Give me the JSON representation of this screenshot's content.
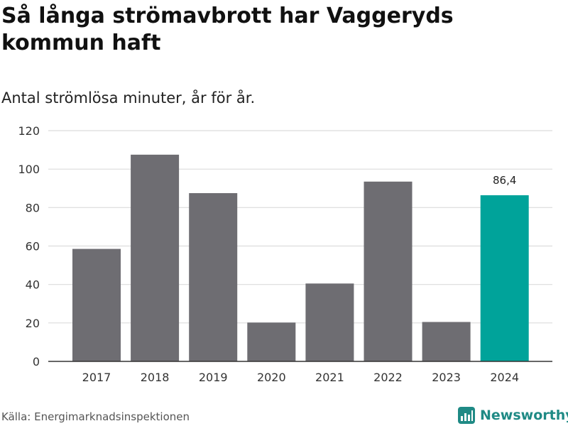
{
  "title": "Så långa strömavbrott har Vaggeryds kommun haft",
  "subtitle": "Antal strömlösa minuter, år för år.",
  "source": "Källa: Energimarknadsinspektionen",
  "brand": {
    "name": "Newsworthy",
    "icon": "newsworthy-logo-icon",
    "color": "#1f8a85"
  },
  "colors": {
    "default_bar": "#6e6d72",
    "highlight_bar": "#00a39a",
    "grid": "#dcdcdc",
    "axis": "#333333"
  },
  "chart_data": {
    "type": "bar",
    "title": "Så långa strömavbrott har Vaggeryds kommun haft",
    "subtitle": "Antal strömlösa minuter, år för år.",
    "xlabel": "",
    "ylabel": "",
    "categories": [
      "2017",
      "2018",
      "2019",
      "2020",
      "2021",
      "2022",
      "2023",
      "2024"
    ],
    "values": [
      58.5,
      107.5,
      87.5,
      20.2,
      40.5,
      93.5,
      20.5,
      86.4
    ],
    "highlight_index": 7,
    "data_labels": [
      {
        "index": 7,
        "text": "86,4"
      }
    ],
    "ylim": [
      0,
      120
    ],
    "yticks": [
      0,
      20,
      40,
      60,
      80,
      100,
      120
    ],
    "grid": true,
    "legend": "none"
  }
}
